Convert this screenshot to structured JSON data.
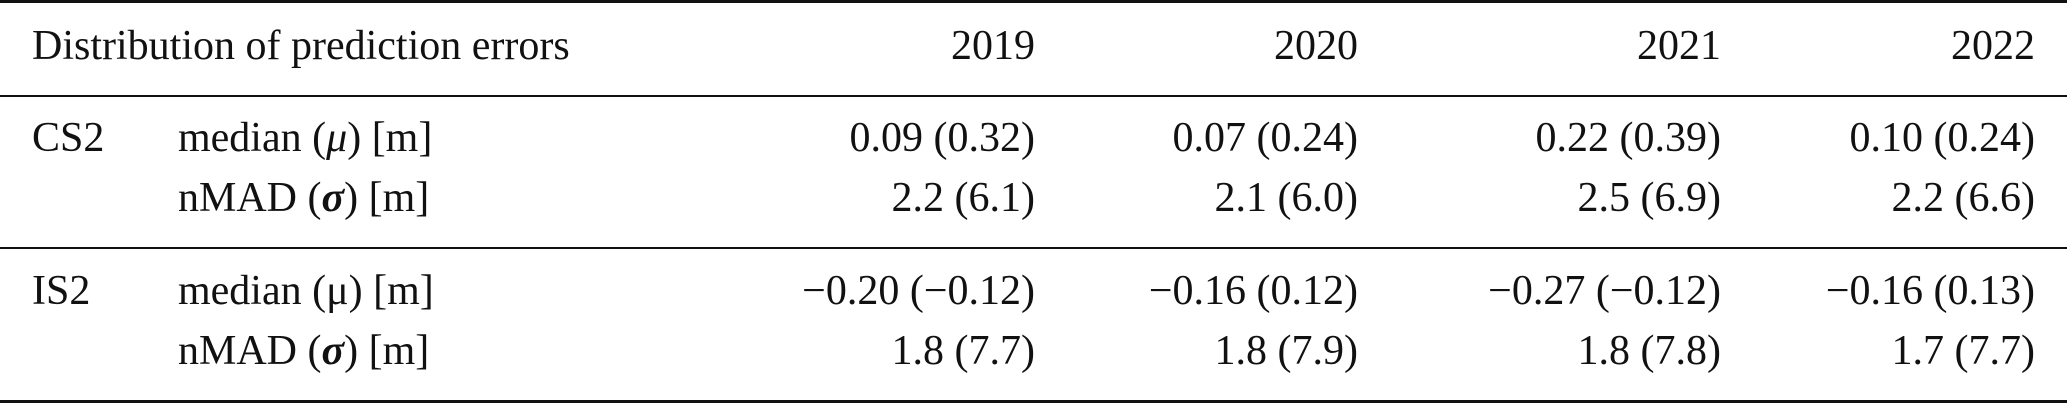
{
  "table": {
    "header": {
      "label": "Distribution of prediction errors",
      "years": [
        "2019",
        "2020",
        "2021",
        "2022"
      ]
    },
    "groups": [
      {
        "name": "CS2",
        "rows": [
          {
            "measure_prefix": "median (",
            "measure_symbol": "μ",
            "measure_suffix": ") [m]",
            "values": [
              "0.09 (0.32)",
              "0.07 (0.24)",
              "0.22 (0.39)",
              "0.10 (0.24)"
            ]
          },
          {
            "measure_prefix": "nMAD (",
            "measure_symbol": "σ",
            "measure_suffix": ") [m]",
            "values": [
              "2.2 (6.1)",
              "2.1 (6.0)",
              "2.5 (6.9)",
              "2.2 (6.6)"
            ]
          }
        ]
      },
      {
        "name": "IS2",
        "rows": [
          {
            "measure_prefix": "median (",
            "measure_symbol": "μ",
            "measure_suffix": ") [m]",
            "values": [
              "−0.20 (−0.12)",
              "−0.16 (0.12)",
              "−0.27 (−0.12)",
              "−0.16 (0.13)"
            ]
          },
          {
            "measure_prefix": "nMAD (",
            "measure_symbol": "σ",
            "measure_suffix": ") [m]",
            "values": [
              "1.8 (7.7)",
              "1.8 (7.9)",
              "1.8 (7.8)",
              "1.7 (7.7)"
            ]
          }
        ]
      }
    ]
  }
}
